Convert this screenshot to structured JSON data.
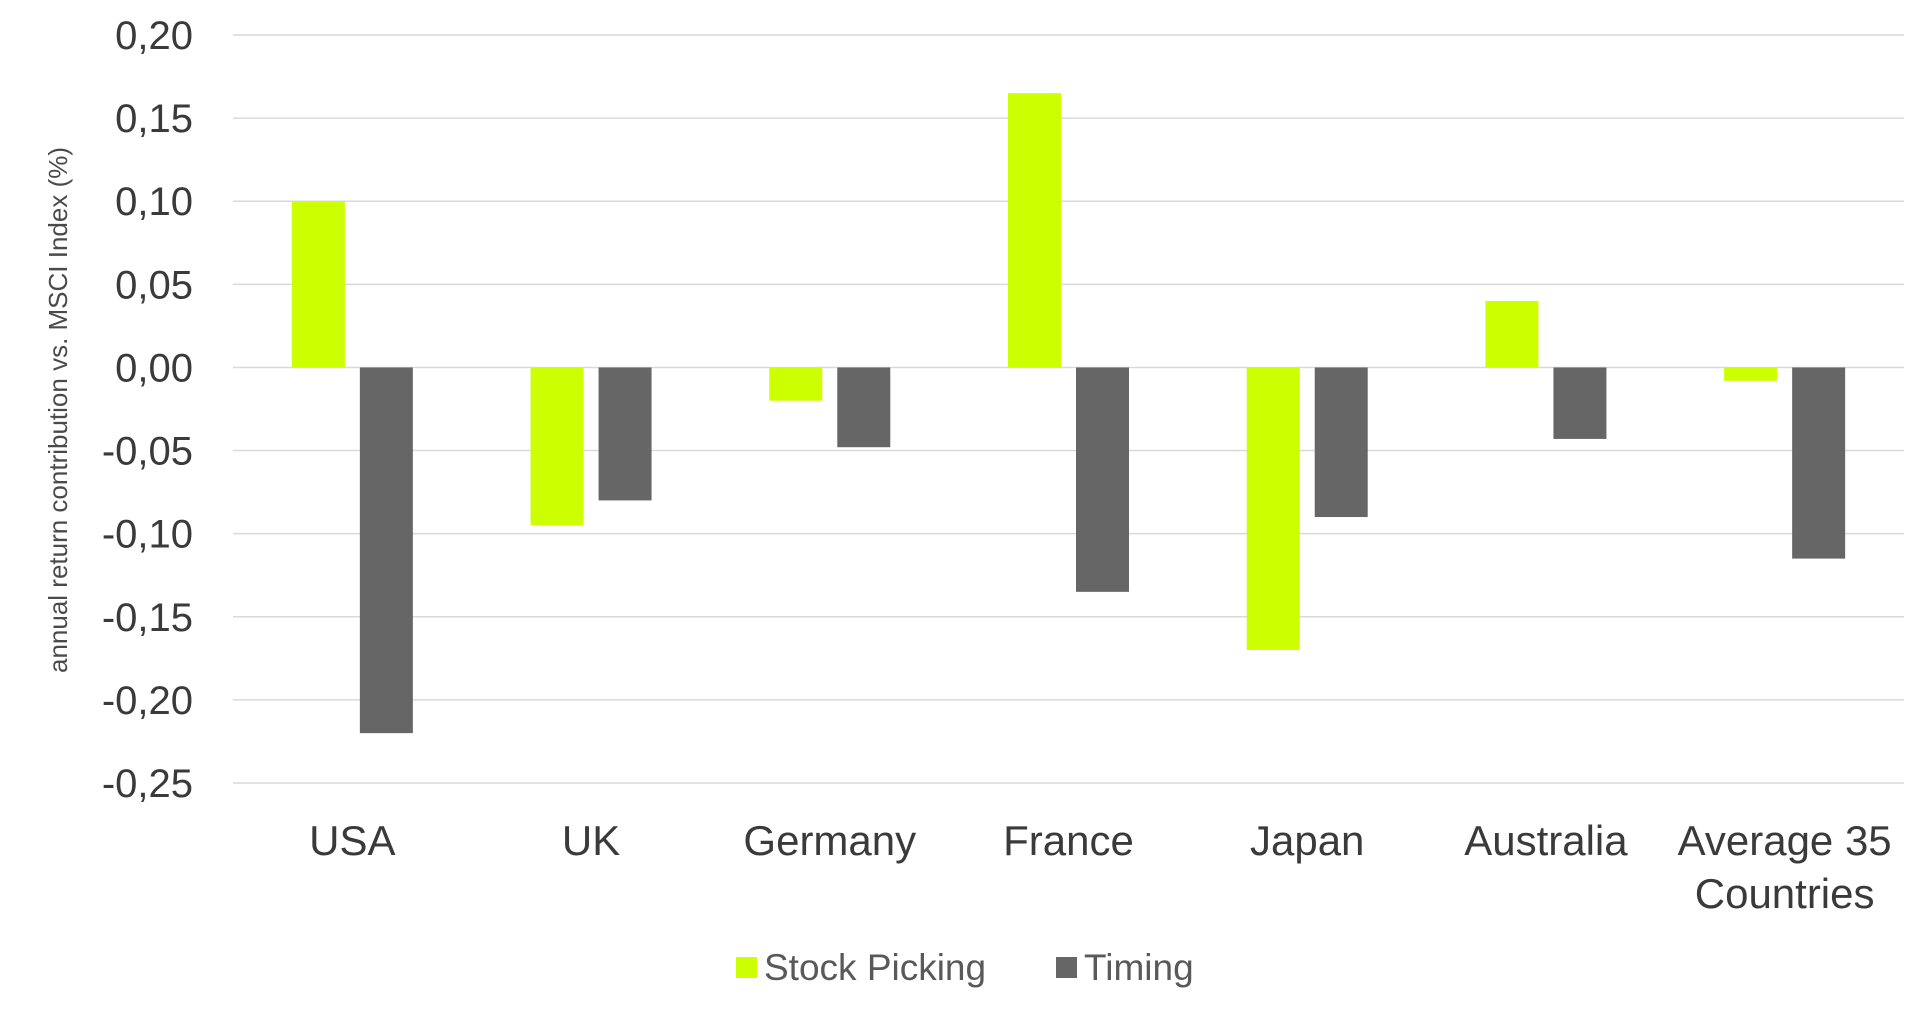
{
  "chart_data": {
    "type": "bar",
    "title": "",
    "xlabel": "",
    "ylabel": "annual return contribution vs. MSCI Index (%)",
    "ylim": [
      -0.25,
      0.2
    ],
    "ytick_step": 0.05,
    "ytick_labels": [
      "0,20",
      "0,15",
      "0,10",
      "0,05",
      "0,00",
      "-0,05",
      "-0,10",
      "-0,15",
      "-0,20",
      "-0,25"
    ],
    "grid": true,
    "legend_position": "bottom",
    "categories": [
      "USA",
      "UK",
      "Germany",
      "France",
      "Japan",
      "Australia",
      "Average 35 Countries"
    ],
    "category_lines": [
      [
        "USA"
      ],
      [
        "UK"
      ],
      [
        "Germany"
      ],
      [
        "France"
      ],
      [
        "Japan"
      ],
      [
        "Australia"
      ],
      [
        "Average 35",
        "Countries"
      ]
    ],
    "series": [
      {
        "name": "Stock Picking",
        "color": "#ccff00",
        "values": [
          0.1,
          -0.095,
          -0.02,
          0.165,
          -0.17,
          0.04,
          -0.008
        ]
      },
      {
        "name": "Timing",
        "color": "#666666",
        "values": [
          -0.22,
          -0.08,
          -0.048,
          -0.135,
          -0.09,
          -0.043,
          -0.115
        ]
      }
    ],
    "gridline_color": "#d9d9d9"
  }
}
